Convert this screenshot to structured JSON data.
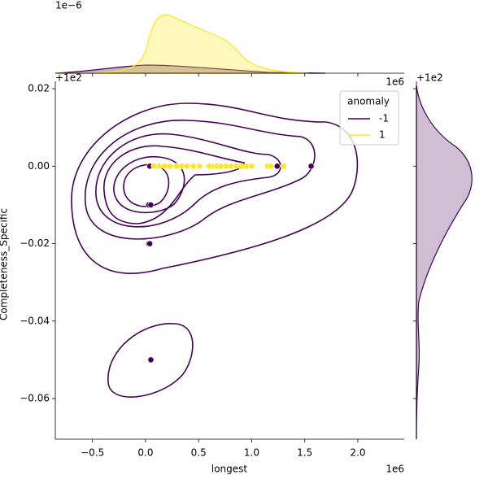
{
  "chart_data": {
    "type": "scatter",
    "x_label": "longest",
    "y_label": "Completeness_Specific",
    "x_offset_label": "1e6",
    "y_offset_label": "+1e2",
    "density_offset_label": "1e−6",
    "legend_title": "anomaly",
    "legend": "upper right",
    "xlim": [
      -0.85,
      2.437
    ],
    "ylim": [
      -0.0705,
      0.0219
    ],
    "xticks": [
      {
        "value": -0.5,
        "label": "−0.5"
      },
      {
        "value": 0,
        "label": "0.0"
      },
      0.5,
      {
        "value": 1,
        "label": "1.0"
      },
      1.5,
      {
        "value": 2,
        "label": "2.0"
      }
    ],
    "yticks": [
      0.02,
      {
        "value": 0,
        "label": "0.00"
      },
      {
        "value": -0.02,
        "label": "−0.02"
      },
      {
        "value": -0.04,
        "label": "−0.04"
      },
      {
        "value": -0.06,
        "label": "−0.06"
      }
    ],
    "series": [
      {
        "name": "-1",
        "color": "#440154",
        "x": [
          0.04,
          0.03,
          0.05,
          0.03,
          0.04,
          0.05,
          0.68,
          0.85,
          1.18,
          1.24,
          1.56
        ],
        "values": [
          0,
          -0.01,
          -0.01,
          -0.02,
          -0.02,
          -0.05,
          0,
          0,
          0,
          0,
          0
        ]
      },
      {
        "name": "1",
        "color": "#fde725",
        "x": [
          0.08,
          0.13,
          0.18,
          0.23,
          0.29,
          0.34,
          0.39,
          0.45,
          0.51,
          0.6,
          0.64,
          0.67,
          0.71,
          0.76,
          0.8,
          0.85,
          0.9,
          0.95,
          1.0,
          1.15,
          1.18,
          1.3
        ],
        "values": [
          0,
          0,
          0,
          0,
          0,
          0,
          0,
          0,
          0,
          0,
          0,
          0,
          0,
          0,
          0,
          0,
          0,
          0,
          0,
          0,
          0,
          0
        ]
      }
    ]
  }
}
